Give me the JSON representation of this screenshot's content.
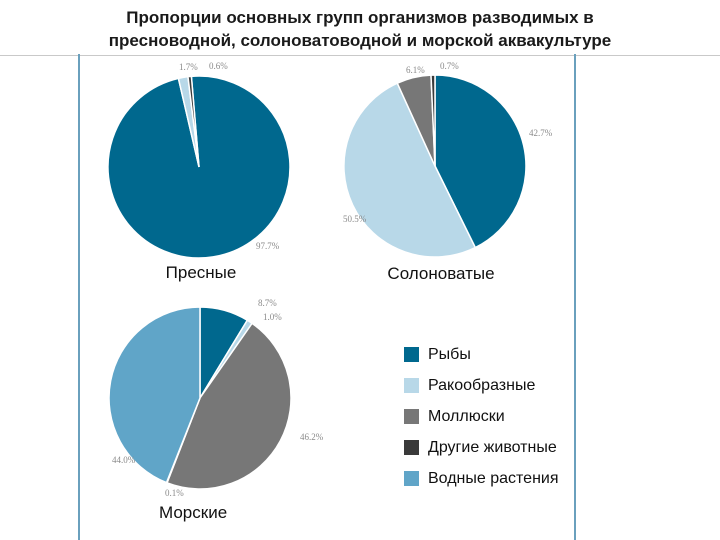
{
  "title_line1": "Пропорции основных групп организмов разводимых в",
  "title_line2": "пресноводной, солоноватоводной и морской аквакультуре",
  "colors": {
    "fish": "#00688e",
    "crustaceans": "#b8d8e8",
    "molluscs": "#777777",
    "other_animals": "#3a3a3a",
    "aquatic_plants": "#60a5c8",
    "frame": "#6aa0bd"
  },
  "legend": [
    {
      "label": "Рыбы",
      "color": "#00688e"
    },
    {
      "label": "Ракообразные",
      "color": "#b8d8e8"
    },
    {
      "label": "Моллюски",
      "color": "#777777"
    },
    {
      "label": "Другие животные",
      "color": "#3a3a3a"
    },
    {
      "label": "Водные растения",
      "color": "#60a5c8"
    }
  ],
  "chart_data": [
    {
      "type": "pie",
      "caption": "Пресные",
      "slices": [
        {
          "category": "Рыбы",
          "value": 97.7,
          "label": "97.7%",
          "color": "#00688e"
        },
        {
          "category": "Ракообразные",
          "value": 1.7,
          "label": "1.7%",
          "color": "#b8d8e8"
        },
        {
          "category": "Другие животные",
          "value": 0.6,
          "label": "0.6%",
          "color": "#3a3a3a"
        }
      ]
    },
    {
      "type": "pie",
      "caption": "Солоноватые",
      "slices": [
        {
          "category": "Рыбы",
          "value": 42.7,
          "label": "42.7%",
          "color": "#00688e"
        },
        {
          "category": "Ракообразные",
          "value": 50.5,
          "label": "50.5%",
          "color": "#b8d8e8"
        },
        {
          "category": "Моллюски",
          "value": 6.1,
          "label": "6.1%",
          "color": "#777777"
        },
        {
          "category": "Другие животные",
          "value": 0.7,
          "label": "0.7%",
          "color": "#3a3a3a"
        }
      ]
    },
    {
      "type": "pie",
      "caption": "Морские",
      "slices": [
        {
          "category": "Рыбы",
          "value": 8.7,
          "label": "8.7%",
          "color": "#00688e"
        },
        {
          "category": "Ракообразные",
          "value": 1.0,
          "label": "1.0%",
          "color": "#b8d8e8"
        },
        {
          "category": "Моллюски",
          "value": 46.2,
          "label": "46.2%",
          "color": "#777777"
        },
        {
          "category": "Другие животные",
          "value": 0.1,
          "label": "0.1%",
          "color": "#3a3a3a"
        },
        {
          "category": "Водные растения",
          "value": 44.0,
          "label": "44.0%",
          "color": "#60a5c8"
        }
      ]
    }
  ]
}
